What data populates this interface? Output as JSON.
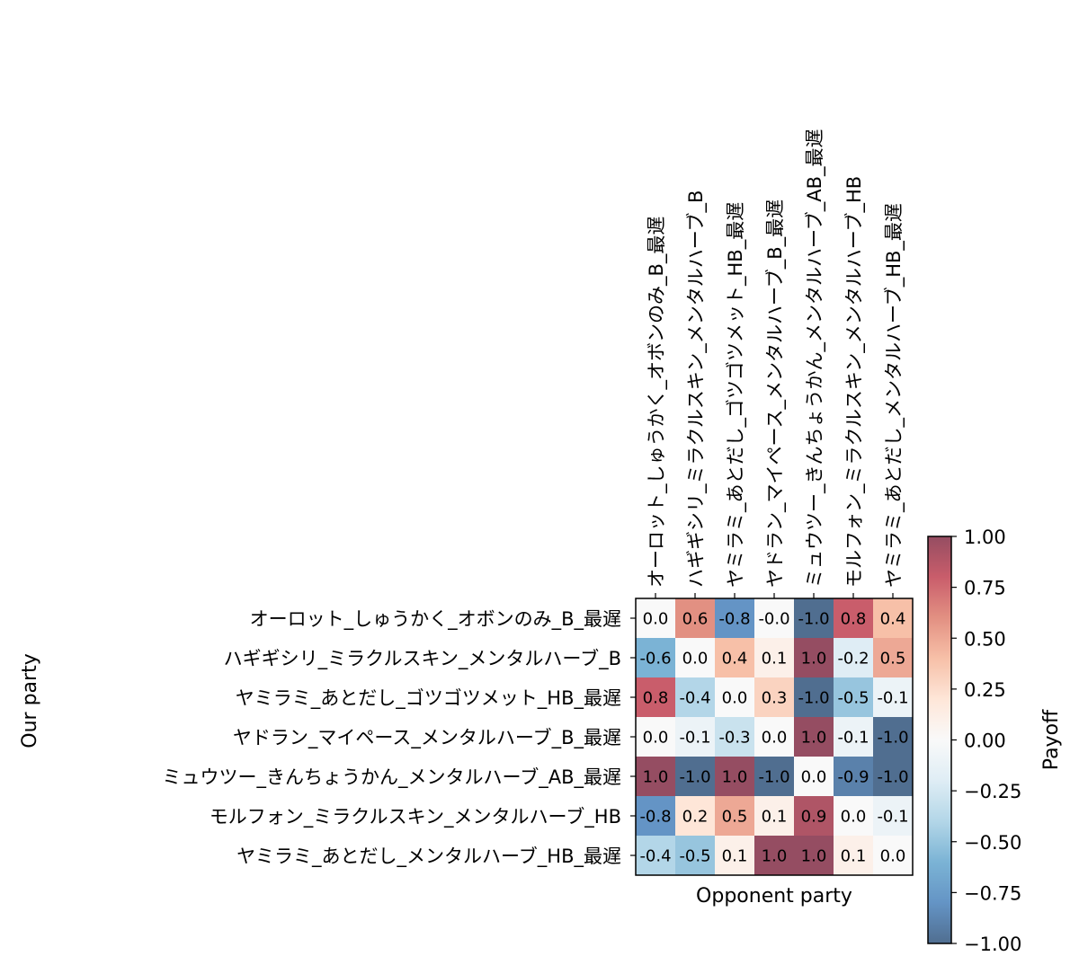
{
  "chart_data": {
    "type": "heatmap",
    "title": "",
    "xlabel": "Opponent party",
    "ylabel": "Our party",
    "x_categories": [
      "オーロット_しゅうかく_オボンのみ_B_最遅",
      "ハギギシリ_ミラクルスキン_メンタルハーブ_B",
      "ヤミラミ_あとだし_ゴツゴツメット_HB_最遅",
      "ヤドラン_マイペース_メンタルハーブ_B_最遅",
      "ミュウツー_きんちょうかん_メンタルハーブ_AB_最遅",
      "モルフォン_ミラクルスキン_メンタルハーブ_HB",
      "ヤミラミ_あとだし_メンタルハーブ_HB_最遅"
    ],
    "y_categories": [
      "オーロット_しゅうかく_オボンのみ_B_最遅",
      "ハギギシリ_ミラクルスキン_メンタルハーブ_B",
      "ヤミラミ_あとだし_ゴツゴツメット_HB_最遅",
      "ヤドラン_マイペース_メンタルハーブ_B_最遅",
      "ミュウツー_きんちょうかん_メンタルハーブ_AB_最遅",
      "モルフォン_ミラクルスキン_メンタルハーブ_HB",
      "ヤミラミ_あとだし_メンタルハーブ_HB_最遅"
    ],
    "values": [
      [
        0.0,
        0.6,
        -0.8,
        -0.0,
        -1.0,
        0.8,
        0.4
      ],
      [
        -0.6,
        0.0,
        0.4,
        0.1,
        1.0,
        -0.2,
        0.5
      ],
      [
        0.8,
        -0.4,
        0.0,
        0.3,
        -1.0,
        -0.5,
        -0.1
      ],
      [
        0.0,
        -0.1,
        -0.3,
        0.0,
        1.0,
        -0.1,
        -1.0
      ],
      [
        1.0,
        -1.0,
        1.0,
        -1.0,
        0.0,
        -0.9,
        -1.0
      ],
      [
        -0.8,
        0.2,
        0.5,
        0.1,
        0.9,
        0.0,
        -0.1
      ],
      [
        -0.4,
        -0.5,
        0.1,
        1.0,
        1.0,
        0.1,
        0.0
      ]
    ],
    "cell_labels": [
      [
        "0.0",
        "0.6",
        "-0.8",
        "-0.0",
        "-1.0",
        "0.8",
        "0.4"
      ],
      [
        "-0.6",
        "0.0",
        "0.4",
        "0.1",
        "1.0",
        "-0.2",
        "0.5"
      ],
      [
        "0.8",
        "-0.4",
        "0.0",
        "0.3",
        "-1.0",
        "-0.5",
        "-0.1"
      ],
      [
        "0.0",
        "-0.1",
        "-0.3",
        "0.0",
        "1.0",
        "-0.1",
        "-1.0"
      ],
      [
        "1.0",
        "-1.0",
        "1.0",
        "-1.0",
        "0.0",
        "-0.9",
        "-1.0"
      ],
      [
        "-0.8",
        "0.2",
        "0.5",
        "0.1",
        "0.9",
        "0.0",
        "-0.1"
      ],
      [
        "-0.4",
        "-0.5",
        "0.1",
        "1.0",
        "1.0",
        "0.1",
        "0.0"
      ]
    ],
    "vmin": -1.0,
    "vmax": 1.0,
    "colormap": "RdBu_r",
    "cell_alpha": 0.7,
    "x_tick_position": "top",
    "x_tick_rotation": "vertical",
    "grid": false,
    "colorbar": {
      "label": "Payoff",
      "ticks": [
        1.0,
        0.75,
        0.5,
        0.25,
        0.0,
        -0.25,
        -0.5,
        -0.75,
        -1.0
      ],
      "tick_labels": [
        "1.00",
        "0.75",
        "0.50",
        "0.25",
        "0.00",
        "−0.25",
        "−0.50",
        "−0.75",
        "−1.00"
      ]
    }
  }
}
